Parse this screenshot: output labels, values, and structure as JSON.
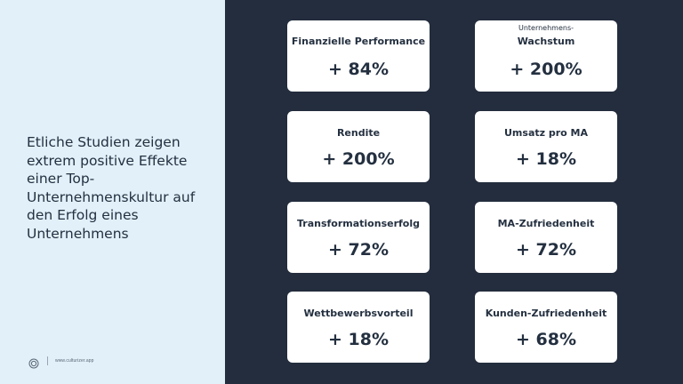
{
  "slide": {
    "headline": "Etliche Studien zeigen extrem positive Effekte einer Top-Unternehmenskultur auf den Erfolg eines Unternehmens",
    "footer_url": "www.culturizer.app",
    "colors": {
      "left_panel": "#e1f0f9",
      "right_panel": "#232d3d",
      "card": "#ffffff",
      "text": "#243040"
    }
  },
  "cards": [
    {
      "pre": "",
      "label": "Finanzielle Performance",
      "value": "+ 84%"
    },
    {
      "pre": "Unternehmens-",
      "label": "Wachstum",
      "value": "+ 200%"
    },
    {
      "pre": "",
      "label": "Rendite",
      "value": "+ 200%"
    },
    {
      "pre": "",
      "label": "Umsatz pro MA",
      "value": "+ 18%"
    },
    {
      "pre": "",
      "label": "Transformationserfolg",
      "value": "+ 72%"
    },
    {
      "pre": "",
      "label": "MA-Zufriedenheit",
      "value": "+ 72%"
    },
    {
      "pre": "",
      "label": "Wettbewerbsvorteil",
      "value": "+ 18%"
    },
    {
      "pre": "",
      "label": "Kunden-Zufriedenheit",
      "value": "+ 68%"
    }
  ]
}
